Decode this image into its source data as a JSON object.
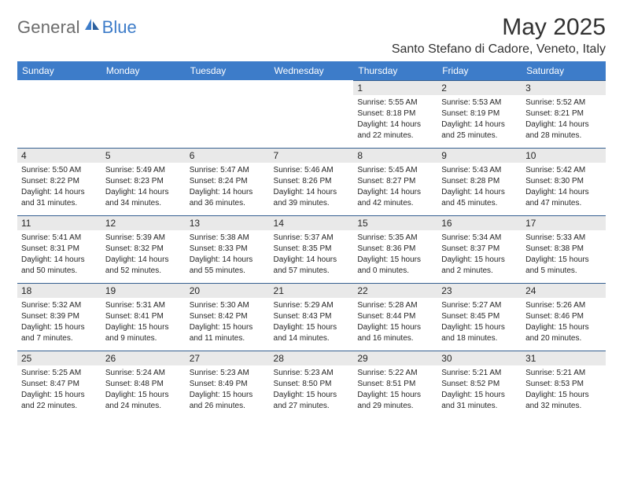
{
  "brand": {
    "part1": "General",
    "part2": "Blue"
  },
  "title": "May 2025",
  "location": "Santo Stefano di Cadore, Veneto, Italy",
  "header_bg": "#3d7cc9",
  "daynum_bg": "#e9e9e9",
  "daynum_border": "#355f90",
  "weekdays": [
    "Sunday",
    "Monday",
    "Tuesday",
    "Wednesday",
    "Thursday",
    "Friday",
    "Saturday"
  ],
  "weeks": [
    [
      null,
      null,
      null,
      null,
      {
        "n": "1",
        "sr": "5:55 AM",
        "ss": "8:18 PM",
        "dl": "14 hours and 22 minutes."
      },
      {
        "n": "2",
        "sr": "5:53 AM",
        "ss": "8:19 PM",
        "dl": "14 hours and 25 minutes."
      },
      {
        "n": "3",
        "sr": "5:52 AM",
        "ss": "8:21 PM",
        "dl": "14 hours and 28 minutes."
      }
    ],
    [
      {
        "n": "4",
        "sr": "5:50 AM",
        "ss": "8:22 PM",
        "dl": "14 hours and 31 minutes."
      },
      {
        "n": "5",
        "sr": "5:49 AM",
        "ss": "8:23 PM",
        "dl": "14 hours and 34 minutes."
      },
      {
        "n": "6",
        "sr": "5:47 AM",
        "ss": "8:24 PM",
        "dl": "14 hours and 36 minutes."
      },
      {
        "n": "7",
        "sr": "5:46 AM",
        "ss": "8:26 PM",
        "dl": "14 hours and 39 minutes."
      },
      {
        "n": "8",
        "sr": "5:45 AM",
        "ss": "8:27 PM",
        "dl": "14 hours and 42 minutes."
      },
      {
        "n": "9",
        "sr": "5:43 AM",
        "ss": "8:28 PM",
        "dl": "14 hours and 45 minutes."
      },
      {
        "n": "10",
        "sr": "5:42 AM",
        "ss": "8:30 PM",
        "dl": "14 hours and 47 minutes."
      }
    ],
    [
      {
        "n": "11",
        "sr": "5:41 AM",
        "ss": "8:31 PM",
        "dl": "14 hours and 50 minutes."
      },
      {
        "n": "12",
        "sr": "5:39 AM",
        "ss": "8:32 PM",
        "dl": "14 hours and 52 minutes."
      },
      {
        "n": "13",
        "sr": "5:38 AM",
        "ss": "8:33 PM",
        "dl": "14 hours and 55 minutes."
      },
      {
        "n": "14",
        "sr": "5:37 AM",
        "ss": "8:35 PM",
        "dl": "14 hours and 57 minutes."
      },
      {
        "n": "15",
        "sr": "5:35 AM",
        "ss": "8:36 PM",
        "dl": "15 hours and 0 minutes."
      },
      {
        "n": "16",
        "sr": "5:34 AM",
        "ss": "8:37 PM",
        "dl": "15 hours and 2 minutes."
      },
      {
        "n": "17",
        "sr": "5:33 AM",
        "ss": "8:38 PM",
        "dl": "15 hours and 5 minutes."
      }
    ],
    [
      {
        "n": "18",
        "sr": "5:32 AM",
        "ss": "8:39 PM",
        "dl": "15 hours and 7 minutes."
      },
      {
        "n": "19",
        "sr": "5:31 AM",
        "ss": "8:41 PM",
        "dl": "15 hours and 9 minutes."
      },
      {
        "n": "20",
        "sr": "5:30 AM",
        "ss": "8:42 PM",
        "dl": "15 hours and 11 minutes."
      },
      {
        "n": "21",
        "sr": "5:29 AM",
        "ss": "8:43 PM",
        "dl": "15 hours and 14 minutes."
      },
      {
        "n": "22",
        "sr": "5:28 AM",
        "ss": "8:44 PM",
        "dl": "15 hours and 16 minutes."
      },
      {
        "n": "23",
        "sr": "5:27 AM",
        "ss": "8:45 PM",
        "dl": "15 hours and 18 minutes."
      },
      {
        "n": "24",
        "sr": "5:26 AM",
        "ss": "8:46 PM",
        "dl": "15 hours and 20 minutes."
      }
    ],
    [
      {
        "n": "25",
        "sr": "5:25 AM",
        "ss": "8:47 PM",
        "dl": "15 hours and 22 minutes."
      },
      {
        "n": "26",
        "sr": "5:24 AM",
        "ss": "8:48 PM",
        "dl": "15 hours and 24 minutes."
      },
      {
        "n": "27",
        "sr": "5:23 AM",
        "ss": "8:49 PM",
        "dl": "15 hours and 26 minutes."
      },
      {
        "n": "28",
        "sr": "5:23 AM",
        "ss": "8:50 PM",
        "dl": "15 hours and 27 minutes."
      },
      {
        "n": "29",
        "sr": "5:22 AM",
        "ss": "8:51 PM",
        "dl": "15 hours and 29 minutes."
      },
      {
        "n": "30",
        "sr": "5:21 AM",
        "ss": "8:52 PM",
        "dl": "15 hours and 31 minutes."
      },
      {
        "n": "31",
        "sr": "5:21 AM",
        "ss": "8:53 PM",
        "dl": "15 hours and 32 minutes."
      }
    ]
  ],
  "labels": {
    "sunrise": "Sunrise:",
    "sunset": "Sunset:",
    "daylight": "Daylight:"
  }
}
